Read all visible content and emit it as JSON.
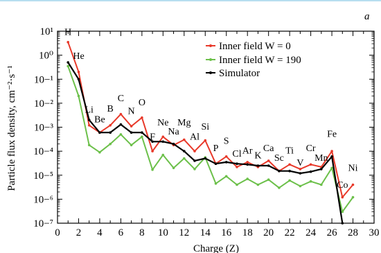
{
  "chart_data": {
    "type": "line",
    "panel_label": "a",
    "title": "",
    "xlabel": "Charge (Z)",
    "ylabel": "Particle flux density, cm⁻²·s⁻¹",
    "x_scale": "linear",
    "y_scale": "log",
    "xlim": [
      0,
      30
    ],
    "ylim": [
      1e-07,
      10
    ],
    "x_ticks": [
      "0",
      "2",
      "4",
      "6",
      "8",
      "10",
      "12",
      "14",
      "16",
      "18",
      "20",
      "22",
      "24",
      "26",
      "28",
      "30"
    ],
    "y_ticks": [
      "10−⁷",
      "10−⁶",
      "10−⁵",
      "10−⁴",
      "10−³",
      "10−²",
      "10−¹",
      "10⁰",
      "10¹"
    ],
    "grid": false,
    "legend_position": "top-right",
    "series": [
      {
        "name": "Inner field W = 0",
        "color": "#e8392a",
        "x": [
          1,
          2,
          3,
          4,
          5,
          6,
          7,
          8,
          9,
          10,
          11,
          12,
          13,
          14,
          15,
          16,
          17,
          18,
          19,
          20,
          21,
          22,
          23,
          24,
          25,
          26,
          27,
          28
        ],
        "y": [
          3.5,
          0.2,
          0.0012,
          0.0006,
          0.0012,
          0.0035,
          0.0011,
          0.0025,
          0.0001,
          0.0004,
          0.00018,
          0.0003,
          0.0001,
          0.00028,
          3e-05,
          6e-05,
          2.2e-05,
          3.5e-05,
          2.2e-05,
          4e-05,
          1.5e-05,
          2.8e-05,
          1.8e-05,
          2.8e-05,
          2.2e-05,
          0.0001,
          1.2e-06,
          4e-06
        ]
      },
      {
        "name": "Inner field W = 190",
        "color": "#6cc04a",
        "x": [
          1,
          2,
          3,
          4,
          5,
          6,
          7,
          8,
          9,
          10,
          11,
          12,
          13,
          14,
          15,
          16,
          17,
          18,
          19,
          20,
          21,
          22,
          23,
          24,
          25,
          26,
          27,
          28
        ],
        "y": [
          0.35,
          0.02,
          0.00018,
          9e-05,
          0.0002,
          0.0005,
          0.00018,
          0.0004,
          1.7e-05,
          7e-05,
          2e-05,
          5e-05,
          1.8e-05,
          5.5e-05,
          4.5e-06,
          9e-06,
          4e-06,
          7e-06,
          4e-06,
          6.5e-06,
          3e-06,
          6e-06,
          3.5e-06,
          5.5e-06,
          4e-06,
          2e-05,
          3e-07,
          1.2e-06
        ]
      },
      {
        "name": "Simulator",
        "color": "#000000",
        "x": [
          1,
          2,
          3,
          4,
          5,
          6,
          7,
          8,
          9,
          10,
          11,
          12,
          13,
          14,
          15,
          16,
          17,
          18,
          19,
          20,
          21,
          22,
          23,
          24,
          25,
          26,
          27
        ],
        "y": [
          0.5,
          0.1,
          0.002,
          0.0006,
          0.0006,
          0.0013,
          0.0006,
          0.0006,
          0.00025,
          0.00025,
          0.0002,
          0.0001,
          4e-05,
          5e-05,
          3e-05,
          3.5e-05,
          3e-05,
          2.8e-05,
          2.5e-05,
          2.5e-05,
          1.5e-05,
          1.5e-05,
          1.2e-05,
          1.4e-05,
          1.8e-05,
          6e-05,
          1e-07
        ]
      }
    ],
    "element_labels": [
      {
        "text": "H",
        "x": 1,
        "y": 7
      },
      {
        "text": "He",
        "x": 2,
        "y": 0.7
      },
      {
        "text": "Li",
        "x": 3,
        "y": 0.004
      },
      {
        "text": "Be",
        "x": 4,
        "y": 0.0016
      },
      {
        "text": "B",
        "x": 5,
        "y": 0.0045
      },
      {
        "text": "C",
        "x": 6,
        "y": 0.012
      },
      {
        "text": "N",
        "x": 7,
        "y": 0.0035
      },
      {
        "text": "O",
        "x": 8,
        "y": 0.008
      },
      {
        "text": "F",
        "x": 9,
        "y": 0.0003
      },
      {
        "text": "Ne",
        "x": 10,
        "y": 0.0012
      },
      {
        "text": "Na",
        "x": 11,
        "y": 0.0005
      },
      {
        "text": "Mg",
        "x": 12,
        "y": 0.0012
      },
      {
        "text": "Al",
        "x": 13,
        "y": 0.0003
      },
      {
        "text": "Si",
        "x": 14,
        "y": 0.0008
      },
      {
        "text": "P",
        "x": 15,
        "y": 0.0001
      },
      {
        "text": "S",
        "x": 16,
        "y": 0.0002
      },
      {
        "text": "Cl",
        "x": 17,
        "y": 6e-05
      },
      {
        "text": "Ar",
        "x": 18,
        "y": 8e-05
      },
      {
        "text": "K",
        "x": 19,
        "y": 5e-05
      },
      {
        "text": "Ca",
        "x": 20,
        "y": 0.0001
      },
      {
        "text": "Sc",
        "x": 21,
        "y": 4e-05
      },
      {
        "text": "Ti",
        "x": 22,
        "y": 8e-05
      },
      {
        "text": "V",
        "x": 23,
        "y": 2.5e-05
      },
      {
        "text": "Cr",
        "x": 24,
        "y": 0.0001
      },
      {
        "text": "Mn",
        "x": 25,
        "y": 4e-05
      },
      {
        "text": "Fe",
        "x": 26,
        "y": 0.0004
      },
      {
        "text": "Co",
        "x": 27,
        "y": 3e-06
      },
      {
        "text": "Ni",
        "x": 28,
        "y": 1.5e-05
      }
    ]
  }
}
